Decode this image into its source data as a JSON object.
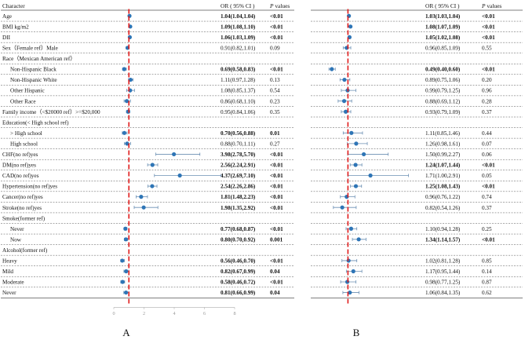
{
  "colors": {
    "point": "#2e75b6",
    "ci": "#6b8fb3",
    "refline": "#e01c1c",
    "rule": "#555555",
    "axis": "#bbbbbb"
  },
  "headers": {
    "character": "Character",
    "or": "OR ( 95% CI )",
    "p_label": "P",
    "p_rest": " values"
  },
  "panels": {
    "a": "A",
    "b": "B"
  },
  "chart_data": [
    {
      "type": "forest",
      "panel": "A",
      "reference_line": 1,
      "xlim": [
        0,
        8
      ],
      "xticks": [
        0,
        2,
        4,
        6,
        8
      ],
      "rows": [
        {
          "label": "Age",
          "indent": 0,
          "or": 1.04,
          "lo": 1.04,
          "hi": 1.04,
          "text": "1.04(1.04,1.04)",
          "p": "<0.01",
          "bold": true
        },
        {
          "label": "BMI kg/m2",
          "indent": 0,
          "or": 1.09,
          "lo": 1.08,
          "hi": 1.1,
          "text": "1.09(1.08,1.10)",
          "p": "<0.01",
          "bold": true
        },
        {
          "label": "DII",
          "indent": 0,
          "or": 1.06,
          "lo": 1.03,
          "hi": 1.09,
          "text": "1.06(1.03,1.09)",
          "p": "<0.01",
          "bold": true
        },
        {
          "label": "Sex（Female ref）Male",
          "indent": 0,
          "or": 0.91,
          "lo": 0.82,
          "hi": 1.01,
          "text": "0.91(0.82,1.01)",
          "p": "0.09",
          "bold": false
        },
        {
          "label": "Race（Mexican American ref）",
          "indent": 0,
          "header": true
        },
        {
          "label": "Non-Hispanic Black",
          "indent": 1,
          "or": 0.69,
          "lo": 0.58,
          "hi": 0.83,
          "text": "0.69(0.58,0.83)",
          "p": "<0.01",
          "bold": true
        },
        {
          "label": "Non-Hispanic White",
          "indent": 1,
          "or": 1.11,
          "lo": 0.97,
          "hi": 1.28,
          "text": "1.11(0.97,1.28)",
          "p": "0.13",
          "bold": false
        },
        {
          "label": "Other Hispanic",
          "indent": 1,
          "or": 1.08,
          "lo": 0.85,
          "hi": 1.37,
          "text": "1.08(0.85,1.37)",
          "p": "0.54",
          "bold": false
        },
        {
          "label": "Other Race",
          "indent": 1,
          "or": 0.86,
          "lo": 0.68,
          "hi": 1.1,
          "text": "0.86(0.68,1.10)",
          "p": "0.23",
          "bold": false
        },
        {
          "label": "Family income（<$20000 ref）>=$20,000",
          "indent": 0,
          "or": 0.95,
          "lo": 0.84,
          "hi": 1.06,
          "text": "0.95(0.84,1.06)",
          "p": "0.35",
          "bold": false
        },
        {
          "label": "Education(< High school ref)",
          "indent": 0,
          "header": true
        },
        {
          "label": "> High school",
          "indent": 1,
          "or": 0.7,
          "lo": 0.56,
          "hi": 0.88,
          "text": "0.70(0.56,0.88)",
          "p": "0.01",
          "bold": true
        },
        {
          "label": "High school",
          "indent": 1,
          "or": 0.88,
          "lo": 0.7,
          "hi": 1.11,
          "text": "0.88(0.70,1.11)",
          "p": "0.27",
          "bold": false
        },
        {
          "label": "CHF(no ref)yes",
          "indent": 0,
          "or": 3.98,
          "lo": 2.78,
          "hi": 5.7,
          "text": "3.98(2.78,5.70)",
          "p": "<0.01",
          "bold": true
        },
        {
          "label": "DM(no ref)yes",
          "indent": 0,
          "or": 2.56,
          "lo": 2.24,
          "hi": 2.91,
          "text": "2.56(2.24,2.91)",
          "p": "<0.01",
          "bold": true
        },
        {
          "label": "CAD(no ref)yes",
          "indent": 0,
          "or": 4.37,
          "lo": 2.69,
          "hi": 7.1,
          "text": "4.37(2.69,7.10)",
          "p": "<0.01",
          "bold": true
        },
        {
          "label": "Hypertension(no ref)yes",
          "indent": 0,
          "or": 2.54,
          "lo": 2.26,
          "hi": 2.86,
          "text": "2.54(2.26,2.86)",
          "p": "<0.01",
          "bold": true
        },
        {
          "label": "Cancer(no ref)yes",
          "indent": 0,
          "or": 1.81,
          "lo": 1.48,
          "hi": 2.23,
          "text": "1.81(1.48,2.23)",
          "p": "<0.01",
          "bold": true
        },
        {
          "label": "Stroke(no ref)yes",
          "indent": 0,
          "or": 1.98,
          "lo": 1.35,
          "hi": 2.92,
          "text": "1.98(1.35,2.92)",
          "p": "<0.01",
          "bold": true
        },
        {
          "label": "Smoke(former ref)",
          "indent": 0,
          "header": true
        },
        {
          "label": "Never",
          "indent": 1,
          "or": 0.77,
          "lo": 0.68,
          "hi": 0.87,
          "text": "0.77(0.68,0.87)",
          "p": "<0.01",
          "bold": true
        },
        {
          "label": "Now",
          "indent": 1,
          "or": 0.8,
          "lo": 0.7,
          "hi": 0.92,
          "text": "0.80(0.70,0.92)",
          "p": "0.001",
          "bold": true
        },
        {
          "label": "Alcohol(former ref)",
          "indent": 0,
          "header": true
        },
        {
          "label": "Heavy",
          "indent": 0,
          "or": 0.56,
          "lo": 0.46,
          "hi": 0.7,
          "text": "0.56(0.46,0.70)",
          "p": "<0.01",
          "bold": true
        },
        {
          "label": "Mild",
          "indent": 0,
          "or": 0.82,
          "lo": 0.67,
          "hi": 0.99,
          "text": "0.82(0.67,0.99)",
          "p": "0.04",
          "bold": true
        },
        {
          "label": "Moderate",
          "indent": 0,
          "or": 0.58,
          "lo": 0.46,
          "hi": 0.72,
          "text": "0.58(0.46,0.72)",
          "p": "<0.01",
          "bold": true
        },
        {
          "label": "Never",
          "indent": 0,
          "or": 0.81,
          "lo": 0.66,
          "hi": 0.99,
          "text": "0.81(0.66,0.99)",
          "p": "0.04",
          "bold": true
        }
      ]
    },
    {
      "type": "forest",
      "panel": "B",
      "reference_line": 1,
      "xlim": [
        0,
        2.6
      ],
      "xticks": [],
      "rows": [
        {
          "or": 1.03,
          "lo": 1.03,
          "hi": 1.04,
          "text": "1.03(1.03,1.04)",
          "p": "<0.01",
          "bold": true
        },
        {
          "or": 1.08,
          "lo": 1.07,
          "hi": 1.09,
          "text": "1.08(1.07,1.09)",
          "p": "<0.01",
          "bold": true
        },
        {
          "or": 1.05,
          "lo": 1.02,
          "hi": 1.08,
          "text": "1.05(1.02,1.08)",
          "p": "<0.01",
          "bold": true
        },
        {
          "or": 0.96,
          "lo": 0.85,
          "hi": 1.09,
          "text": "0.96(0.85,1.09)",
          "p": "0.55",
          "bold": false
        },
        {
          "header": true
        },
        {
          "or": 0.49,
          "lo": 0.4,
          "hi": 0.6,
          "text": "0.49(0.40,0.60)",
          "p": "<0.01",
          "bold": true
        },
        {
          "or": 0.89,
          "lo": 0.75,
          "hi": 1.06,
          "text": "0.89(0.75,1.06)",
          "p": "0.20",
          "bold": false
        },
        {
          "or": 0.99,
          "lo": 0.79,
          "hi": 1.25,
          "text": "0.99(0.79,1.25)",
          "p": "0.96",
          "bold": false
        },
        {
          "or": 0.88,
          "lo": 0.69,
          "hi": 1.12,
          "text": "0.88(0.69,1.12)",
          "p": "0.28",
          "bold": false
        },
        {
          "or": 0.93,
          "lo": 0.79,
          "hi": 1.09,
          "text": "0.93(0.79,1.09)",
          "p": "0.37",
          "bold": false
        },
        {
          "header": true
        },
        {
          "or": 1.11,
          "lo": 0.85,
          "hi": 1.46,
          "text": "1.11(0.85,1.46)",
          "p": "0.44",
          "bold": false
        },
        {
          "or": 1.26,
          "lo": 0.98,
          "hi": 1.61,
          "text": "1.26(0.98,1.61)",
          "p": "0.07",
          "bold": false
        },
        {
          "or": 1.5,
          "lo": 0.99,
          "hi": 2.27,
          "text": "1.50(0.99,2.27)",
          "p": "0.06",
          "bold": false
        },
        {
          "or": 1.24,
          "lo": 1.07,
          "hi": 1.44,
          "text": "1.24(1.07,1.44)",
          "p": "<0.01",
          "bold": true
        },
        {
          "or": 1.71,
          "lo": 1.0,
          "hi": 2.91,
          "text": "1.71(1.00,2.91)",
          "p": "0.05",
          "bold": false
        },
        {
          "or": 1.25,
          "lo": 1.08,
          "hi": 1.43,
          "text": "1.25(1.08,1.43)",
          "p": "<0.01",
          "bold": true
        },
        {
          "or": 0.96,
          "lo": 0.76,
          "hi": 1.22,
          "text": "0.96(0.76,1.22)",
          "p": "0.74",
          "bold": false
        },
        {
          "or": 0.82,
          "lo": 0.54,
          "hi": 1.26,
          "text": "0.82(0.54,1.26)",
          "p": "0.37",
          "bold": false
        },
        {
          "header": true
        },
        {
          "or": 1.1,
          "lo": 0.94,
          "hi": 1.28,
          "text": "1.10(0.94,1.28)",
          "p": "0.25",
          "bold": false
        },
        {
          "or": 1.34,
          "lo": 1.14,
          "hi": 1.57,
          "text": "1.34(1.14,1.57)",
          "p": "<0.01",
          "bold": true
        },
        {
          "header": true
        },
        {
          "or": 1.02,
          "lo": 0.81,
          "hi": 1.28,
          "text": "1.02(0.81,1.28)",
          "p": "0.85",
          "bold": false
        },
        {
          "or": 1.17,
          "lo": 0.95,
          "hi": 1.44,
          "text": "1.17(0.95,1.44)",
          "p": "0.14",
          "bold": false
        },
        {
          "or": 0.98,
          "lo": 0.77,
          "hi": 1.25,
          "text": "0.98(0.77,1.25)",
          "p": "0.87",
          "bold": false
        },
        {
          "or": 1.06,
          "lo": 0.84,
          "hi": 1.35,
          "text": "1.06(0.84,1.35)",
          "p": "0.62",
          "bold": false
        }
      ]
    }
  ]
}
